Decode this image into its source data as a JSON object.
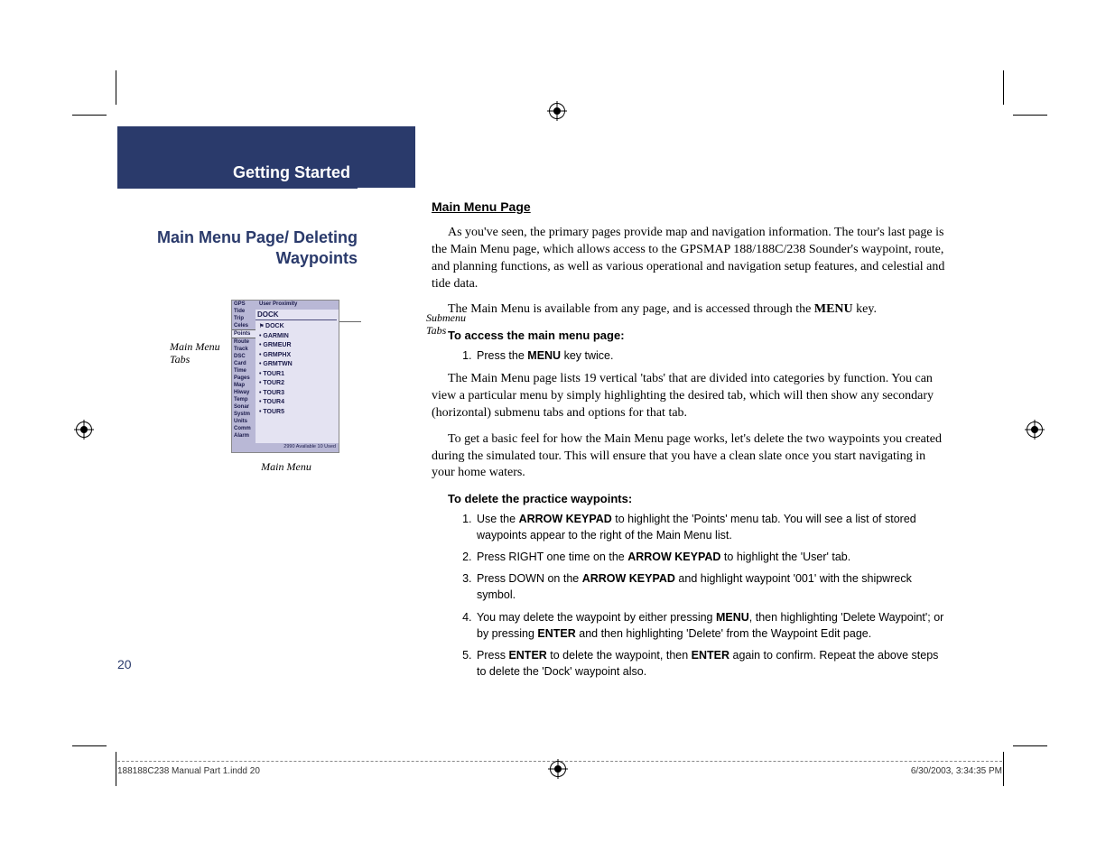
{
  "section_title": "Getting Started",
  "topic_title": "Main Menu Page/ Deleting Waypoints",
  "figure": {
    "left_label": "Main Menu Tabs",
    "right_label": "Submenu Tabs",
    "caption": "Main Menu",
    "sidebar_tabs": [
      "GPS",
      "Tide",
      "Trip",
      "Celes",
      "Points",
      "Route",
      "Track",
      "DSC",
      "Card",
      "Time",
      "Pages",
      "Map",
      "Hiway",
      "Temp",
      "Sonar",
      "Systm",
      "Units",
      "Comm",
      "Alarm"
    ],
    "active_tab_index": 4,
    "submenu_header": "User  Proximity",
    "list_title": "DOCK",
    "list_items": [
      "DOCK",
      "GARMIN",
      "GRMEUR",
      "GRMPHX",
      "GRMTWN",
      "TOUR1",
      "TOUR2",
      "TOUR3",
      "TOUR4",
      "TOUR5"
    ],
    "flagged_index": 0,
    "footer_text": "2990 Available   10   Used"
  },
  "heading": "Main Menu Page",
  "para1_a": "As you've seen, the primary pages provide map and navigation information. The tour's last page is the Main Menu page, which allows access to the GPSMAP 188/188C/238 Sounder's waypoint, route, and planning functions, as well as various operational and navigation setup features, and celestial and tide data.",
  "para2_a": "The Main Menu is available from any page, and is accessed through the ",
  "para2_key": "MENU",
  "para2_b": " key.",
  "sub1": "To access the main menu page:",
  "step1_a": "Press the ",
  "step1_key": "MENU",
  "step1_b": " key twice.",
  "para3": "The Main Menu page lists 19 vertical 'tabs' that are divided into categories by function. You can view a particular menu by simply highlighting the desired tab, which will then show any secondary (horizontal) submenu tabs and options for that tab.",
  "para4": "To get a basic feel for how the Main Menu page works, let's delete the two waypoints you created during the simulated tour. This will ensure that you have a clean slate once you start navigating in your home waters.",
  "sub2": "To delete the practice waypoints:",
  "d1_a": "Use the ",
  "d1_key": "ARROW KEYPAD",
  "d1_b": " to highlight the 'Points' menu tab. You will see a list of stored waypoints appear to the right of the Main Menu list.",
  "d2_a": "Press RIGHT one time on the ",
  "d2_key": "ARROW KEYPAD",
  "d2_b": " to highlight the 'User' tab.",
  "d3_a": "Press DOWN on the ",
  "d3_key": "ARROW KEYPAD",
  "d3_b": " and highlight waypoint '001' with the shipwreck symbol.",
  "d4_a": "You may delete the waypoint by either pressing ",
  "d4_key1": "MENU",
  "d4_b": ", then highlighting 'Delete Waypoint'; or by pressing ",
  "d4_key2": "ENTER",
  "d4_c": " and then highlighting 'Delete' from the Waypoint Edit page.",
  "d5_a": "Press ",
  "d5_key1": "ENTER",
  "d5_b": " to delete the waypoint, then ",
  "d5_key2": "ENTER",
  "d5_c": " again to confirm. Repeat the above steps to delete the 'Dock' waypoint also.",
  "page_number": "20",
  "footer_left": "188188C238 Manual Part 1.indd   20",
  "footer_right": "6/30/2003, 3:34:35 PM",
  "colors": {
    "brand_blue": "#2a3a6b",
    "screen_bg": "#e4e3f2",
    "screen_side": "#b9b8d6"
  }
}
